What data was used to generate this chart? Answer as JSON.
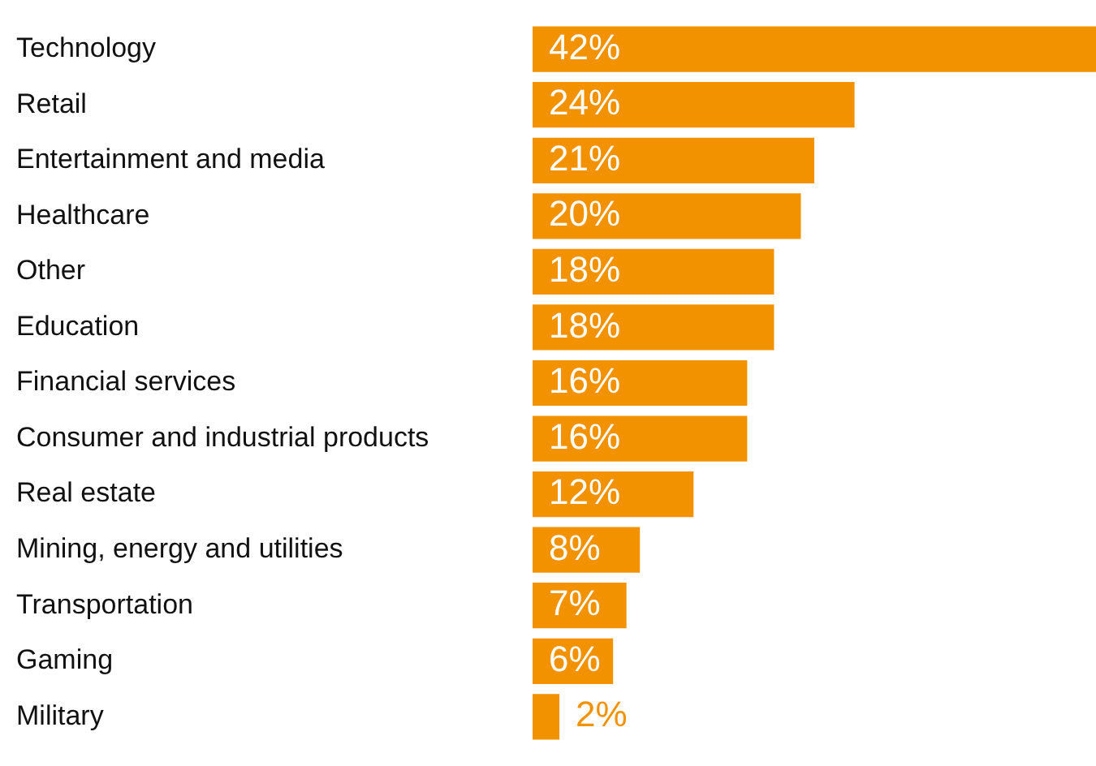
{
  "chart_data": {
    "type": "bar",
    "orientation": "horizontal",
    "color": "#f39200",
    "value_labels": [
      "42%",
      "24%",
      "21%",
      "20%",
      "18%",
      "18%",
      "16%",
      "16%",
      "12%",
      "8%",
      "7%",
      "6%",
      "2%"
    ],
    "categories": [
      "Technology",
      "Retail",
      "Entertainment and media",
      "Healthcare",
      "Other",
      "Education",
      "Financial services",
      "Consumer and industrial products",
      "Real estate",
      "Mining, energy and utilities",
      "Transportation",
      "Gaming",
      "Military"
    ],
    "values": [
      42,
      24,
      21,
      20,
      18,
      18,
      16,
      16,
      12,
      8,
      7,
      6,
      2
    ],
    "grid": false,
    "legend": false
  }
}
